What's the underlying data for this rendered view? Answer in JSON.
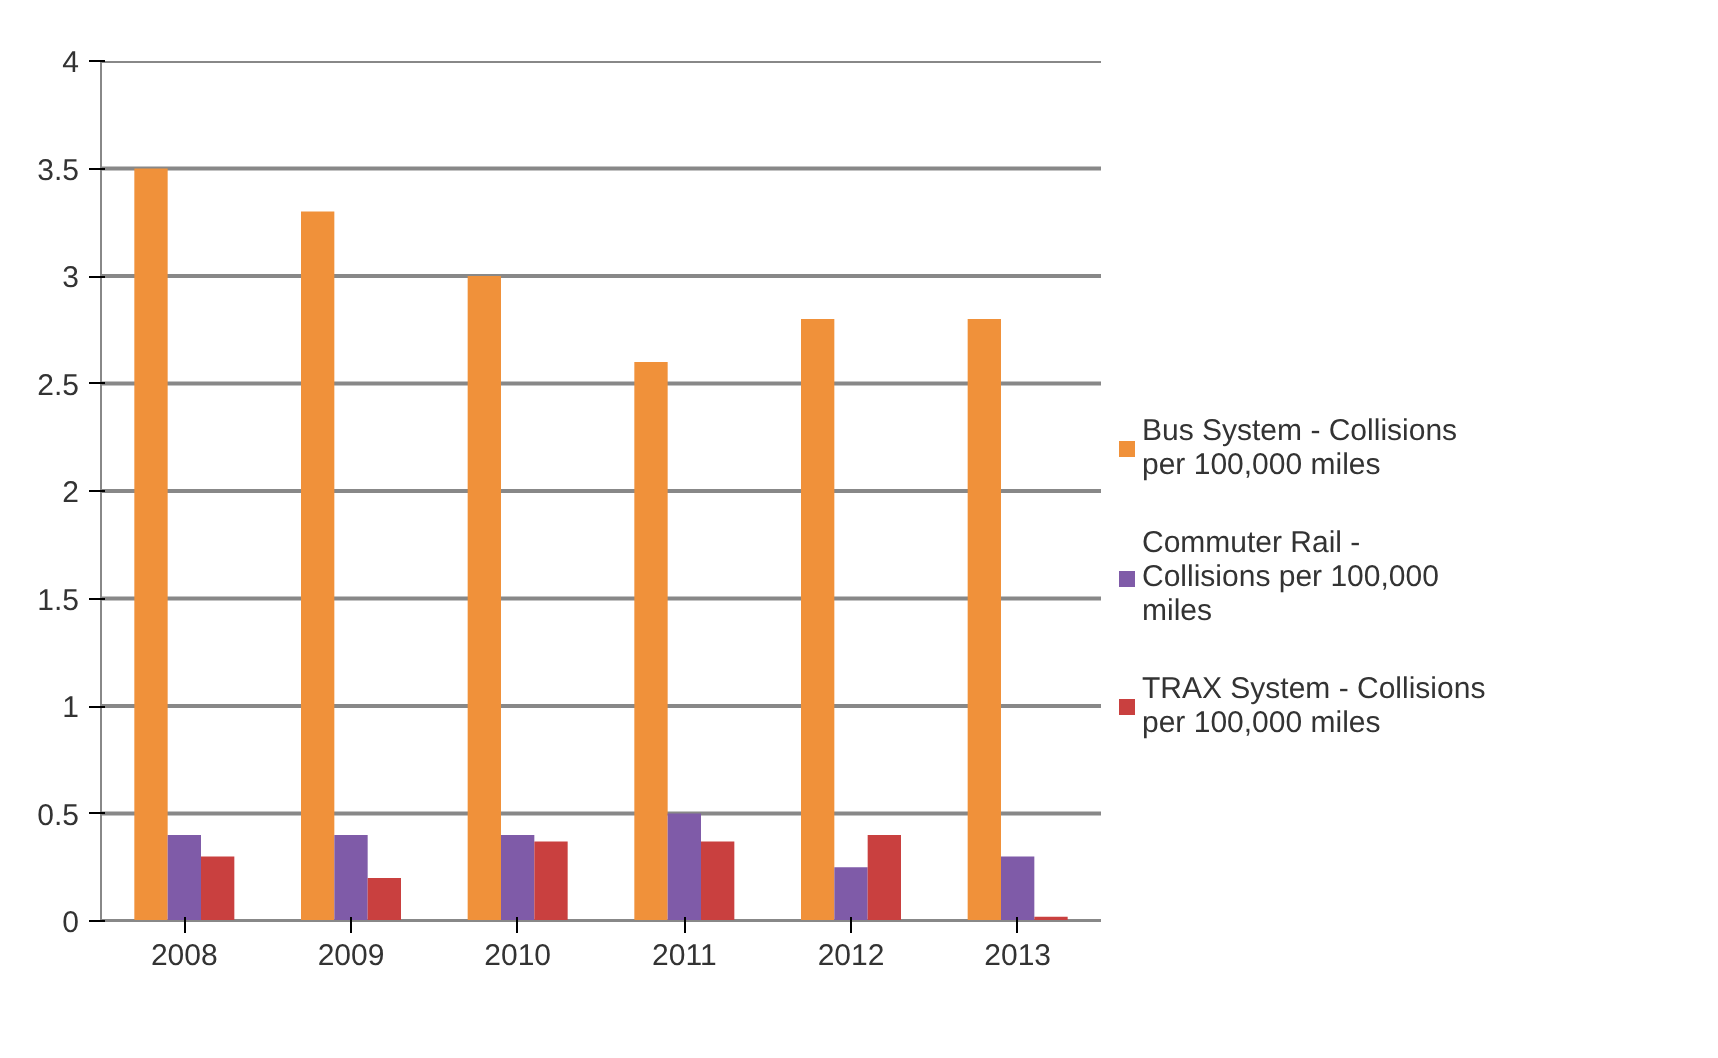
{
  "chart_data": {
    "type": "bar",
    "categories": [
      "2008",
      "2009",
      "2010",
      "2011",
      "2012",
      "2013"
    ],
    "series": [
      {
        "name": "Bus System - Collisions per 100,000 miles",
        "color": "#f0913a",
        "values": [
          3.5,
          3.3,
          3.0,
          2.6,
          2.8,
          2.8
        ]
      },
      {
        "name": "Commuter Rail - Collisions per 100,000 miles",
        "color": "#7f5ba8",
        "values": [
          0.4,
          0.4,
          0.4,
          0.5,
          0.25,
          0.3
        ]
      },
      {
        "name": "TRAX System - Collisions per 100,000 miles",
        "color": "#c9403f",
        "values": [
          0.3,
          0.2,
          0.37,
          0.37,
          0.4,
          0.02
        ]
      }
    ],
    "ylim": [
      0,
      4
    ],
    "yticks": [
      0,
      0.5,
      1,
      1.5,
      2,
      2.5,
      3,
      3.5,
      4
    ],
    "grid": "y",
    "legend": "right"
  }
}
